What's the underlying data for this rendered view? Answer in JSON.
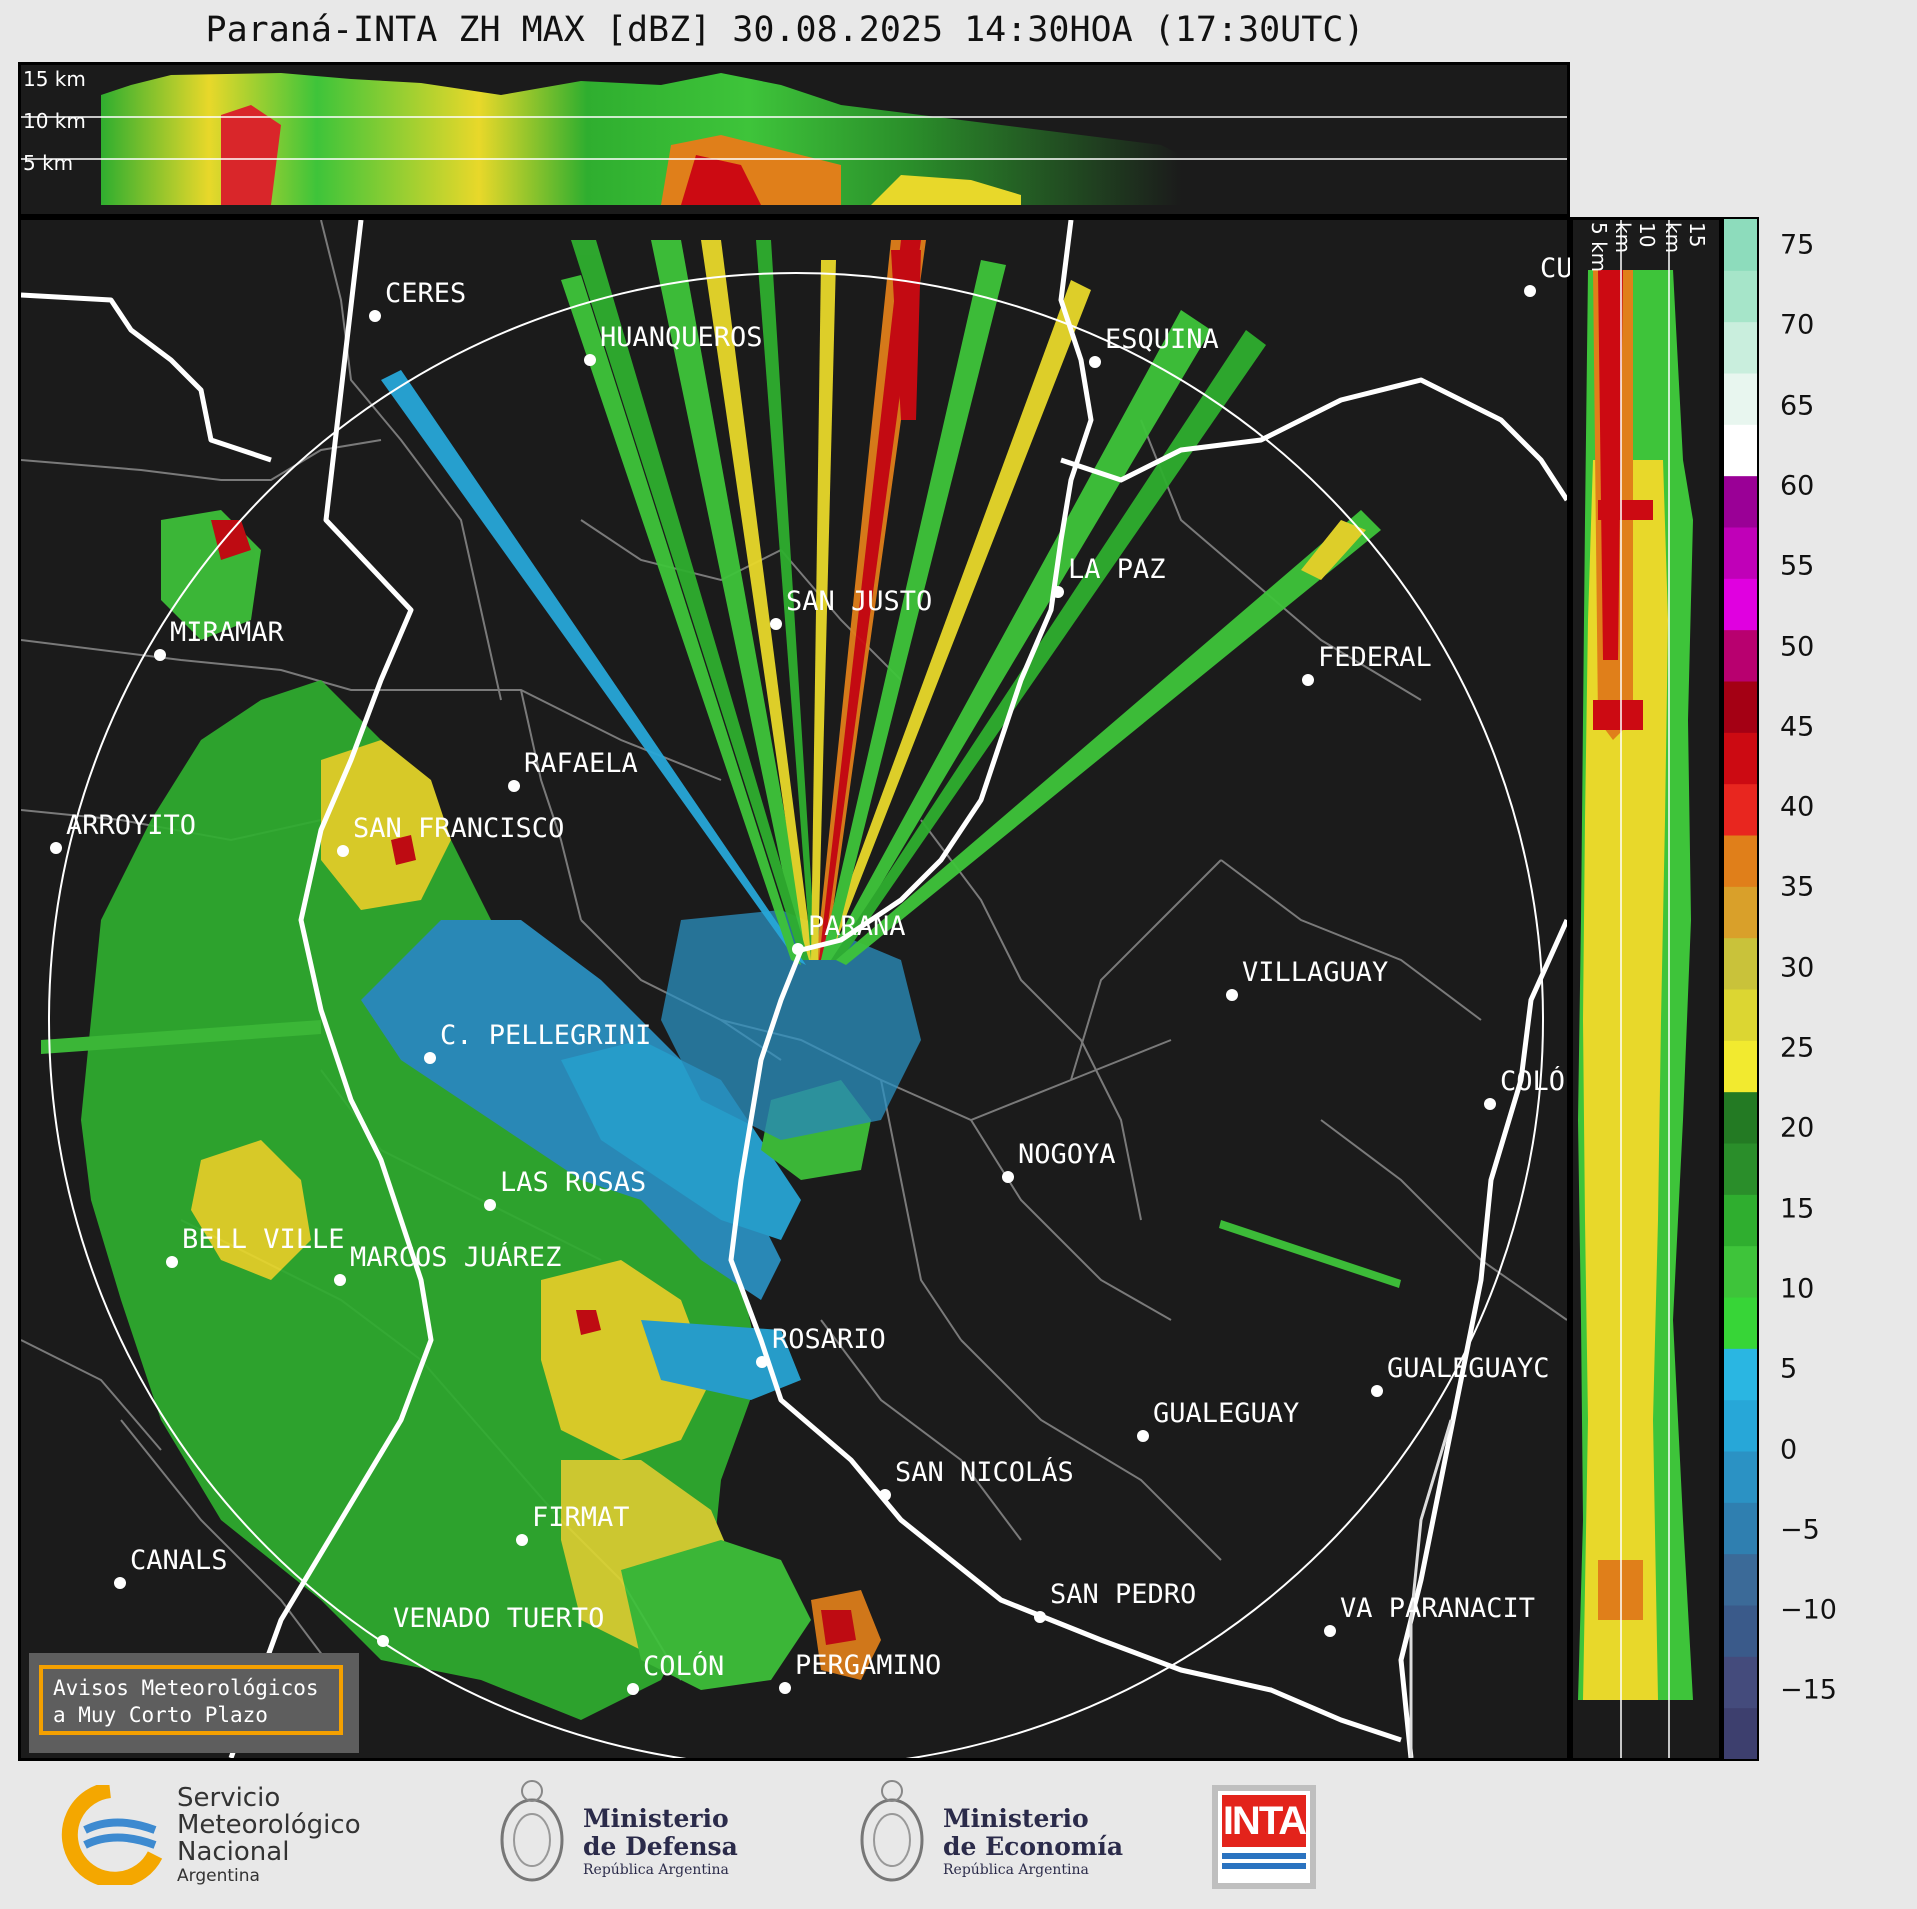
{
  "title": "Paraná-INTA ZH MAX [dBZ] 30.08.2025 14:30HOA (17:30UTC)",
  "height_labels_top": [
    "15 km",
    "10 km",
    "5 km"
  ],
  "height_labels_side": [
    "5 km",
    "10 km",
    "15 km"
  ],
  "colorbar": {
    "ticks": [
      "75",
      "70",
      "65",
      "60",
      "55",
      "50",
      "45",
      "40",
      "35",
      "30",
      "25",
      "20",
      "15",
      "10",
      "5",
      "0",
      "−5",
      "−10",
      "−15"
    ],
    "colors": [
      "#3d3f6e",
      "#444b7c",
      "#3a5a8a",
      "#3b6a98",
      "#2f7fb0",
      "#2b92c4",
      "#27a7d8",
      "#2ab6e2",
      "#37d537",
      "#3ec43a",
      "#2fae2f",
      "#2a8e2a",
      "#237a23",
      "#f2ea2f",
      "#dcd632",
      "#c9c23a",
      "#d9a02a",
      "#e07f1a",
      "#e8261f",
      "#cc0a12",
      "#a40014",
      "#b8006f",
      "#e000e0",
      "#c000b8",
      "#9a0096",
      "#ffffff",
      "#e8f6ef",
      "#c9eedd",
      "#a6e5c9",
      "#8ddcbc"
    ]
  },
  "cities": [
    {
      "name": "CERES"
    },
    {
      "name": "HUANQUEROS"
    },
    {
      "name": "ESQUINA"
    },
    {
      "name": "CU"
    },
    {
      "name": "SAN JUSTO"
    },
    {
      "name": "LA PAZ"
    },
    {
      "name": "MIRAMAR"
    },
    {
      "name": "FEDERAL"
    },
    {
      "name": "RAFAELA"
    },
    {
      "name": "ARROYITO"
    },
    {
      "name": "SAN FRANCISCO"
    },
    {
      "name": "PARANA"
    },
    {
      "name": "VILLAGUAY"
    },
    {
      "name": "C. PELLEGRINI"
    },
    {
      "name": "COLÓ"
    },
    {
      "name": "NOGOYA"
    },
    {
      "name": "LAS ROSAS"
    },
    {
      "name": "BELL VILLE"
    },
    {
      "name": "MARCOS JUÁREZ"
    },
    {
      "name": "ROSARIO"
    },
    {
      "name": "GUALEGUAYC"
    },
    {
      "name": "GUALEGUAY"
    },
    {
      "name": "SAN NICOLÁS"
    },
    {
      "name": "FIRMAT"
    },
    {
      "name": "CANALS"
    },
    {
      "name": "SAN PEDRO"
    },
    {
      "name": "VENADO TUERTO"
    },
    {
      "name": "VA PARANACIT"
    },
    {
      "name": "COLÓN"
    },
    {
      "name": "PERGAMINO"
    }
  ],
  "aviso": {
    "line1": "Avisos Meteorológicos",
    "line2": "a Muy Corto Plazo"
  },
  "logos": {
    "smn": {
      "line1": "Servicio",
      "line2": "Meteorológico",
      "line3": "Nacional",
      "line4": "Argentina"
    },
    "defensa": {
      "line1": "Ministerio",
      "line2": "de Defensa",
      "line3": "República Argentina"
    },
    "economia": {
      "line1": "Ministerio",
      "line2": "de Economía",
      "line3": "República Argentina"
    },
    "inta": "INTA"
  }
}
